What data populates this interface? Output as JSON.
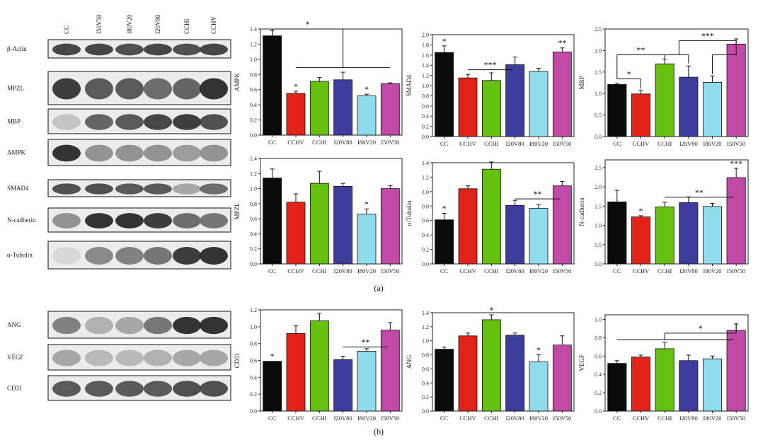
{
  "panel_labels": [
    "(a)",
    "(b)"
  ],
  "blots_a": {
    "lanes": [
      "CC",
      "I50V50",
      "I80V20",
      "I20V80",
      "CCHI",
      "CCHV"
    ],
    "rows": [
      {
        "label": "β-Actin",
        "intensity": [
          0.85,
          0.85,
          0.8,
          0.85,
          0.8,
          0.85
        ]
      },
      {
        "label": "MPZL",
        "intensity": [
          0.9,
          0.75,
          0.75,
          0.65,
          0.7,
          0.95
        ]
      },
      {
        "label": "MBP",
        "intensity": [
          0.2,
          0.7,
          0.75,
          0.85,
          0.9,
          0.8
        ]
      },
      {
        "label": "AMPK",
        "intensity": [
          0.95,
          0.45,
          0.45,
          0.45,
          0.4,
          0.45
        ]
      },
      {
        "label": "SMAD4",
        "intensity": [
          0.8,
          0.8,
          0.75,
          0.75,
          0.35,
          0.65
        ]
      },
      {
        "label": "N-cadherin",
        "intensity": [
          0.45,
          0.95,
          0.95,
          0.9,
          0.65,
          0.6
        ]
      },
      {
        "label": "α-Tubulin",
        "intensity": [
          0.1,
          0.5,
          0.55,
          0.6,
          0.9,
          0.95
        ]
      }
    ]
  },
  "blots_b": {
    "rows": [
      {
        "label": "ANG",
        "intensity": [
          0.55,
          0.3,
          0.35,
          0.6,
          0.95,
          0.95
        ]
      },
      {
        "label": "VEGF",
        "intensity": [
          0.35,
          0.25,
          0.25,
          0.3,
          0.35,
          0.35
        ]
      },
      {
        "label": "CD31",
        "intensity": [
          0.75,
          0.75,
          0.75,
          0.75,
          0.8,
          0.8
        ]
      }
    ]
  },
  "colors": [
    "#0a0a0a",
    "#e2231a",
    "#66c010",
    "#3e3d9e",
    "#8fdcea",
    "#c04aa6"
  ],
  "chart_data": [
    {
      "id": "ampk",
      "type": "bar",
      "ylabel": "AMPK",
      "categories": [
        "CC",
        "CCHV",
        "CCHI",
        "I20V80",
        "I80V20",
        "I50V50"
      ],
      "values": [
        1.31,
        0.55,
        0.71,
        0.73,
        0.52,
        0.68
      ],
      "errors": [
        0.07,
        0.03,
        0.05,
        0.1,
        0.02,
        0.01
      ],
      "ylim": [
        0,
        1.4
      ],
      "yticks": [
        "0.0",
        "0.2",
        "0.4",
        "0.6",
        "0.8",
        "1.0",
        "1.2",
        "1.4"
      ],
      "star_labels": [
        "",
        "*",
        "",
        "",
        "*",
        ""
      ],
      "brackets": [
        {
          "stars": "*",
          "lines": [
            [
              0,
              1.31,
              0,
              1.4
            ],
            [
              0,
              1.4,
              3,
              1.4
            ],
            [
              3,
              1.4,
              3,
              0.89
            ],
            [
              1,
              0.89,
              5,
              0.89
            ]
          ]
        }
      ]
    },
    {
      "id": "smad4",
      "type": "bar",
      "ylabel": "SMAD4",
      "categories": [
        "CC",
        "CCHV",
        "CCHI",
        "I20V80",
        "I80V20",
        "I50V50"
      ],
      "values": [
        1.65,
        1.15,
        1.1,
        1.41,
        1.28,
        1.66
      ],
      "errors": [
        0.13,
        0.07,
        0.15,
        0.15,
        0.06,
        0.08
      ],
      "ylim": [
        0,
        2.0
      ],
      "yticks": [
        "0.0",
        "0.2",
        "0.4",
        "0.6",
        "0.8",
        "1.0",
        "1.2",
        "1.4",
        "1.6",
        "1.8",
        "2.0"
      ],
      "star_labels": [
        "*",
        "",
        "",
        "",
        "",
        "**"
      ],
      "brackets": [
        {
          "stars": "***",
          "lines": [
            [
              1,
              1.31,
              2.9,
              1.31
            ]
          ]
        }
      ]
    },
    {
      "id": "mbp",
      "type": "bar",
      "ylabel": "MBP",
      "categories": [
        "CC",
        "CCHV",
        "CCHI",
        "I20V80",
        "I80V20",
        "I50V50"
      ],
      "values": [
        1.21,
        0.99,
        1.69,
        1.38,
        1.26,
        2.15
      ],
      "errors": [
        0.03,
        0.08,
        0.11,
        0.26,
        0.15,
        0.12
      ],
      "ylim": [
        0,
        2.5
      ],
      "yticks": [
        "0.0",
        "0.5",
        "1.0",
        "1.5",
        "2.0",
        "2.5"
      ],
      "star_labels": [
        "",
        "",
        "",
        "",
        "",
        ""
      ],
      "brackets": [
        {
          "stars": "*",
          "lines": [
            [
              0,
              1.34,
              1,
              1.34
            ],
            [
              1,
              1.34,
              1,
              1.11
            ]
          ]
        },
        {
          "stars": "**",
          "lines": [
            [
              0,
              1.34,
              0,
              1.9
            ],
            [
              0,
              1.9,
              2,
              1.9
            ],
            [
              2,
              1.9,
              2,
              1.8
            ],
            [
              2,
              1.9,
              3,
              1.9
            ],
            [
              3,
              1.9,
              3,
              1.7
            ]
          ]
        },
        {
          "stars": "***",
          "lines": [
            [
              2.6,
              1.9,
              2.6,
              2.23
            ],
            [
              2.6,
              2.23,
              5,
              2.23
            ],
            [
              5,
              2.23,
              5,
              1.9
            ],
            [
              4,
              1.9,
              5,
              1.9
            ],
            [
              4,
              1.9,
              4,
              1.45
            ]
          ]
        }
      ]
    },
    {
      "id": "mpzl",
      "type": "bar",
      "ylabel": "MPZL",
      "categories": [
        "CC",
        "CCHV",
        "CCHI",
        "I20V80",
        "I80V20",
        "I50V50"
      ],
      "values": [
        1.14,
        0.82,
        1.07,
        1.03,
        0.66,
        1.0
      ],
      "errors": [
        0.12,
        0.11,
        0.16,
        0.04,
        0.07,
        0.04
      ],
      "ylim": [
        0,
        1.4
      ],
      "yticks": [
        "0.0",
        "0.2",
        "0.4",
        "0.6",
        "0.8",
        "1.0",
        "1.2",
        "1.4"
      ],
      "star_labels": [
        "",
        "",
        "",
        "",
        "*",
        ""
      ],
      "brackets": []
    },
    {
      "id": "tubulin",
      "type": "bar",
      "ylabel": "α-Tubulin",
      "categories": [
        "CC",
        "CCHV",
        "CCHI",
        "I20V80",
        "I80V20",
        "I50V50"
      ],
      "values": [
        0.61,
        1.04,
        1.31,
        0.81,
        0.77,
        1.08
      ],
      "errors": [
        0.09,
        0.04,
        0.1,
        0.07,
        0.05,
        0.06
      ],
      "ylim": [
        0,
        1.4
      ],
      "yticks": [
        "0.0",
        "0.2",
        "0.4",
        "0.6",
        "0.8",
        "1.0",
        "1.2",
        "1.4"
      ],
      "star_labels": [
        "*",
        "",
        "",
        "",
        "",
        ""
      ],
      "brackets": [
        {
          "stars": "**",
          "lines": [
            [
              3,
              0.9,
              4.9,
              0.9
            ]
          ]
        }
      ]
    },
    {
      "id": "ncad",
      "type": "bar",
      "ylabel": "N-cadherin",
      "categories": [
        "CC",
        "CCHV",
        "CCHI",
        "I20V80",
        "I80V20",
        "I50V50"
      ],
      "values": [
        1.61,
        1.22,
        1.48,
        1.59,
        1.49,
        2.24
      ],
      "errors": [
        0.3,
        0.03,
        0.12,
        0.15,
        0.08,
        0.24
      ],
      "ylim": [
        0,
        2.7
      ],
      "yticks": [
        "0.0",
        "0.5",
        "1.0",
        "1.5",
        "2.0",
        "2.5"
      ],
      "star_labels": [
        "",
        "*",
        "",
        "",
        "",
        "***"
      ],
      "brackets": [
        {
          "stars": "**",
          "lines": [
            [
              2,
              1.73,
              4.9,
              1.73
            ]
          ]
        }
      ]
    },
    {
      "id": "cd31",
      "type": "bar",
      "ylabel": "CD31",
      "categories": [
        "CC",
        "CCHV",
        "CCHI",
        "I20V80",
        "I80V20",
        "I50V50"
      ],
      "values": [
        0.59,
        0.92,
        1.07,
        0.61,
        0.71,
        0.96
      ],
      "errors": [
        0.0,
        0.09,
        0.09,
        0.04,
        0.03,
        0.09
      ],
      "ylim": [
        0,
        1.2
      ],
      "yticks": [
        "0.0",
        "0.2",
        "0.4",
        "0.6",
        "0.8",
        "1.0",
        "1.2"
      ],
      "star_labels": [
        "*",
        "",
        "",
        "",
        "",
        ""
      ],
      "brackets": [
        {
          "stars": "**",
          "lines": [
            [
              3,
              0.76,
              4.9,
              0.76
            ]
          ]
        }
      ]
    },
    {
      "id": "ang",
      "type": "bar",
      "ylabel": "ANG",
      "categories": [
        "CC",
        "CCHV",
        "CCHI",
        "I20V80",
        "I80V20",
        "I50V50"
      ],
      "values": [
        0.88,
        1.07,
        1.3,
        1.08,
        0.7,
        0.94
      ],
      "errors": [
        0.03,
        0.04,
        0.07,
        0.03,
        0.1,
        0.13
      ],
      "ylim": [
        0,
        1.4
      ],
      "yticks": [
        "0.0",
        "0.2",
        "0.4",
        "0.6",
        "0.8",
        "1.0",
        "1.2",
        "1.4"
      ],
      "star_labels": [
        "",
        "",
        "*",
        "",
        "*",
        ""
      ],
      "brackets": []
    },
    {
      "id": "vegf",
      "type": "bar",
      "ylabel": "VEGF",
      "categories": [
        "CC",
        "CCHV",
        "CCHI",
        "I20V80",
        "I80V20",
        "I50V50"
      ],
      "values": [
        0.52,
        0.59,
        0.68,
        0.55,
        0.57,
        0.88
      ],
      "errors": [
        0.03,
        0.02,
        0.07,
        0.06,
        0.03,
        0.07
      ],
      "ylim": [
        0,
        1.05
      ],
      "yticks": [
        "0.0",
        "0.2",
        "0.4",
        "0.6",
        "0.8",
        "1.0"
      ],
      "star_labels": [
        "",
        "",
        "",
        "",
        "",
        ""
      ],
      "brackets": [
        {
          "stars": "*",
          "lines": [
            [
              0,
              0.78,
              4.9,
              0.78
            ],
            [
              2,
              0.78,
              2,
              0.85
            ],
            [
              2,
              0.85,
              5,
              0.85
            ],
            [
              5,
              0.85,
              5,
              0.96
            ]
          ]
        }
      ]
    }
  ]
}
